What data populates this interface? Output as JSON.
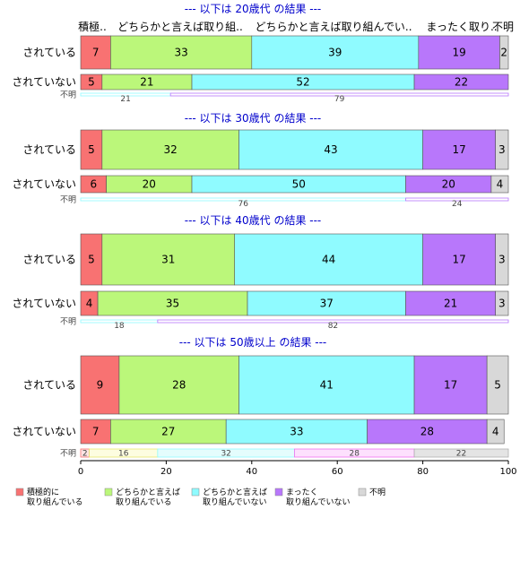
{
  "chart_data": {
    "type": "bar",
    "orientation": "horizontal-stacked-percent",
    "xlim": [
      0,
      100
    ],
    "xticks": [
      0,
      20,
      40,
      60,
      80,
      100
    ],
    "column_headers": [
      "積極..",
      "どちらかと言えば取り組..",
      "どちらかと言えば取り組んでい..",
      "まったく取り..",
      "不明"
    ],
    "legend": [
      {
        "label": [
          "積極的に",
          "取り組んでいる"
        ],
        "color": "#f87272"
      },
      {
        "label": [
          "どちらかと言えば",
          "取り組んでいる"
        ],
        "color": "#bbf77a"
      },
      {
        "label": [
          "どちらかと言えば",
          "取り組んでいない"
        ],
        "color": "#8ffbff"
      },
      {
        "label": [
          "まったく",
          "取り組んでいない"
        ],
        "color": "#b877fb"
      },
      {
        "label": [
          "不明"
        ],
        "color": "#d8d8d8"
      }
    ],
    "panels": [
      {
        "title": "--- 以下は 20歳代 の結果 ---",
        "rows": [
          {
            "label": "されている",
            "values": [
              7,
              33,
              39,
              19,
              2
            ]
          },
          {
            "label": "されていない",
            "values": [
              5,
              21,
              52,
              22,
              0
            ]
          },
          {
            "label": "不明",
            "values": [
              21,
              79
            ],
            "colors": [
              "#ffffff",
              "#ffffff"
            ],
            "outline": [
              "#8ffbff",
              "#b877fb"
            ]
          }
        ]
      },
      {
        "title": "--- 以下は 30歳代 の結果 ---",
        "rows": [
          {
            "label": "されている",
            "values": [
              5,
              32,
              43,
              17,
              3
            ]
          },
          {
            "label": "されていない",
            "values": [
              6,
              20,
              50,
              20,
              4
            ]
          },
          {
            "label": "不明",
            "values": [
              76,
              24
            ],
            "colors": [
              "#ffffff",
              "#ffffff"
            ],
            "outline": [
              "#8ffbff",
              "#b877fb"
            ]
          }
        ]
      },
      {
        "title": "--- 以下は 40歳代 の結果 ---",
        "rows": [
          {
            "label": "されている",
            "values": [
              5,
              31,
              44,
              17,
              3
            ]
          },
          {
            "label": "されていない",
            "values": [
              4,
              35,
              37,
              21,
              3
            ]
          },
          {
            "label": "不明",
            "values": [
              18,
              82
            ],
            "colors": [
              "#ffffff",
              "#ffffff"
            ],
            "outline": [
              "#8ffbff",
              "#b877fb"
            ]
          }
        ]
      },
      {
        "title": "--- 以下は 50歳以上 の結果 ---",
        "rows": [
          {
            "label": "されている",
            "values": [
              9,
              28,
              41,
              17,
              5
            ]
          },
          {
            "label": "されていない",
            "values": [
              7,
              27,
              33,
              28,
              4
            ]
          },
          {
            "label": "不明",
            "values": [
              2,
              16,
              32,
              28,
              22
            ],
            "colors": [
              "#fde4e4",
              "#fdfde0",
              "#e4fdfd",
              "#fde0fd",
              "#e4e4e4"
            ],
            "outline": [
              "#f87272",
              "#e8e870",
              "#8ffbff",
              "#f070f0",
              "#b0b0b0"
            ]
          }
        ]
      }
    ]
  }
}
